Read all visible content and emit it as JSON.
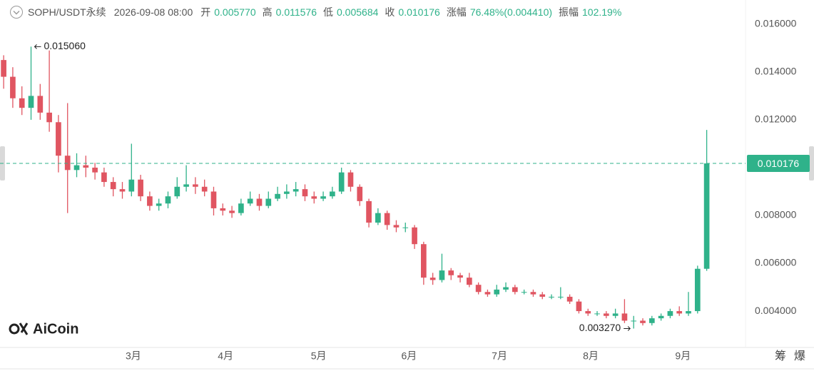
{
  "header": {
    "symbol": "SOPH/USDT永续",
    "datetime": "2026-09-08 08:00",
    "fields": [
      {
        "label": "开",
        "value": "0.005770"
      },
      {
        "label": "高",
        "value": "0.011576"
      },
      {
        "label": "低",
        "value": "0.005684"
      },
      {
        "label": "收",
        "value": "0.010176"
      },
      {
        "label": "涨幅",
        "value": "76.48%(0.004410)"
      },
      {
        "label": "振幅",
        "value": "102.19%"
      }
    ]
  },
  "logo": "AiCoin",
  "toolbar": [
    "筹",
    "爆"
  ],
  "chart_data": {
    "type": "candlestick",
    "open": [
      0.0145,
      0.0138,
      0.0129,
      0.0125,
      0.013,
      0.0123,
      0.0119,
      0.0105,
      0.0099,
      0.0101,
      0.01,
      0.0098,
      0.0094,
      0.0091,
      0.009,
      0.0095,
      0.0088,
      0.0084,
      0.0085,
      0.0088,
      0.0092,
      0.0093,
      0.0092,
      0.009,
      0.0083,
      0.0082,
      0.0081,
      0.0085,
      0.0087,
      0.0084,
      0.0087,
      0.0089,
      0.009,
      0.0091,
      0.0088,
      0.0087,
      0.0088,
      0.009,
      0.0098,
      0.0092,
      0.0086,
      0.0077,
      0.0081,
      0.0076,
      0.0075,
      0.0075,
      0.0068,
      0.0054,
      0.0053,
      0.0057,
      0.0055,
      0.0054,
      0.0051,
      0.0048,
      0.0047,
      0.0049,
      0.005,
      0.0048,
      0.0048,
      0.0047,
      0.0046,
      0.0046,
      0.0046,
      0.0044,
      0.004,
      0.0039,
      0.0039,
      0.0038,
      0.0039,
      0.0036,
      0.0036,
      0.0035,
      0.0037,
      0.0038,
      0.004,
      0.0039,
      0.004,
      0.00577
    ],
    "high": [
      0.0147,
      0.0142,
      0.0134,
      0.01506,
      0.0135,
      0.0149,
      0.0122,
      0.0127,
      0.0106,
      0.0105,
      0.0102,
      0.01,
      0.0096,
      0.0094,
      0.011,
      0.0097,
      0.009,
      0.0087,
      0.009,
      0.0096,
      0.0101,
      0.0096,
      0.0095,
      0.0092,
      0.0085,
      0.0084,
      0.0087,
      0.009,
      0.0089,
      0.009,
      0.0092,
      0.0093,
      0.0094,
      0.0093,
      0.009,
      0.009,
      0.0092,
      0.01,
      0.0099,
      0.0093,
      0.0087,
      0.0083,
      0.0082,
      0.0078,
      0.0077,
      0.0076,
      0.0069,
      0.0056,
      0.0064,
      0.0058,
      0.0056,
      0.0056,
      0.0052,
      0.0049,
      0.0051,
      0.0052,
      0.0051,
      0.0049,
      0.0049,
      0.0048,
      0.0047,
      0.005,
      0.0047,
      0.0045,
      0.0041,
      0.004,
      0.004,
      0.0041,
      0.0045,
      0.0038,
      0.0037,
      0.0038,
      0.0039,
      0.0041,
      0.0042,
      0.0048,
      0.0059,
      0.011576
    ],
    "low": [
      0.0133,
      0.0125,
      0.0122,
      0.012,
      0.012,
      0.0115,
      0.0098,
      0.0081,
      0.0096,
      0.0096,
      0.0095,
      0.0092,
      0.0088,
      0.0087,
      0.0088,
      0.0086,
      0.0082,
      0.0082,
      0.0083,
      0.0087,
      0.009,
      0.0089,
      0.0088,
      0.008,
      0.008,
      0.0079,
      0.008,
      0.0084,
      0.0082,
      0.0083,
      0.0086,
      0.0087,
      0.0088,
      0.0086,
      0.0085,
      0.0086,
      0.0087,
      0.0089,
      0.009,
      0.0084,
      0.0075,
      0.0076,
      0.0074,
      0.0073,
      0.0073,
      0.0066,
      0.0051,
      0.0051,
      0.0052,
      0.0053,
      0.0052,
      0.005,
      0.0047,
      0.0046,
      0.0046,
      0.0048,
      0.0047,
      0.0047,
      0.0046,
      0.0045,
      0.0045,
      0.0045,
      0.0043,
      0.0039,
      0.0038,
      0.0038,
      0.0037,
      0.0037,
      0.0035,
      0.00327,
      0.0034,
      0.0034,
      0.0036,
      0.0037,
      0.0038,
      0.0038,
      0.0039,
      0.005684
    ],
    "close": [
      0.0138,
      0.0129,
      0.0125,
      0.013,
      0.0123,
      0.0119,
      0.0105,
      0.0099,
      0.0101,
      0.01,
      0.0098,
      0.0094,
      0.0091,
      0.009,
      0.0095,
      0.0088,
      0.0084,
      0.0085,
      0.0088,
      0.0092,
      0.0093,
      0.0092,
      0.009,
      0.0083,
      0.0082,
      0.0081,
      0.0085,
      0.0087,
      0.0084,
      0.0087,
      0.0089,
      0.009,
      0.0091,
      0.0088,
      0.0087,
      0.0088,
      0.009,
      0.0098,
      0.0092,
      0.0086,
      0.0077,
      0.0081,
      0.0076,
      0.0075,
      0.0075,
      0.0068,
      0.0054,
      0.0053,
      0.0057,
      0.0055,
      0.0054,
      0.0051,
      0.0048,
      0.0047,
      0.0049,
      0.005,
      0.0048,
      0.0048,
      0.0047,
      0.0046,
      0.0046,
      0.0046,
      0.0044,
      0.004,
      0.0039,
      0.0039,
      0.0038,
      0.0039,
      0.0036,
      0.0036,
      0.0035,
      0.0037,
      0.0038,
      0.004,
      0.0039,
      0.004,
      0.00577,
      0.010176
    ],
    "up_color": "#2fb28a",
    "down_color": "#e05561",
    "xlim": [
      -0.4,
      81.25
    ],
    "xticks": [
      {
        "value": 14.2,
        "label": "3月"
      },
      {
        "value": 24.3,
        "label": "4月"
      },
      {
        "value": 34.5,
        "label": "5月"
      },
      {
        "value": 44.4,
        "label": "6月"
      },
      {
        "value": 54.3,
        "label": "7月"
      },
      {
        "value": 64.3,
        "label": "8月"
      },
      {
        "value": 74.4,
        "label": "9月"
      }
    ],
    "ylim": [
      0.00248,
      0.01701
    ],
    "yticks": [
      {
        "value": 0.004,
        "label": "0.004000"
      },
      {
        "value": 0.006,
        "label": "0.006000"
      },
      {
        "value": 0.008,
        "label": "0.008000"
      },
      {
        "value": 0.01,
        "label": "0.010000"
      },
      {
        "value": 0.012,
        "label": "0.012000"
      },
      {
        "value": 0.014,
        "label": "0.014000"
      },
      {
        "value": 0.016,
        "label": "0.016000"
      }
    ],
    "last_price": {
      "value": 0.010176,
      "label": "0.010176"
    },
    "annotations": [
      {
        "value": 0.01506,
        "label": "0.015060"
      },
      {
        "value": 0.00327,
        "label": "0.003270"
      }
    ]
  }
}
